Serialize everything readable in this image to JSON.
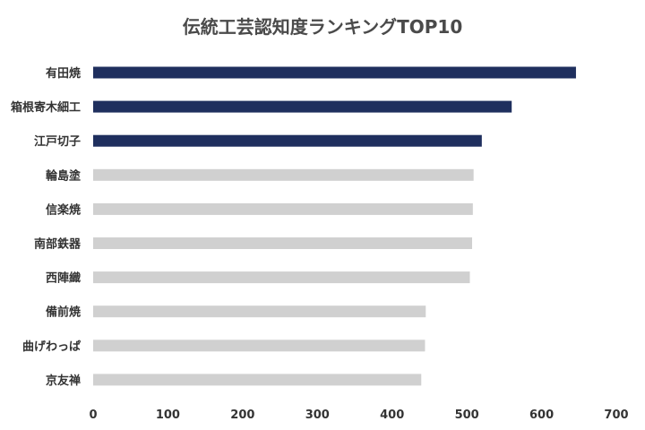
{
  "chart_data": {
    "type": "bar",
    "orientation": "horizontal",
    "title": "伝統工芸認知度ランキングTOP10",
    "xlabel": "",
    "ylabel": "",
    "categories": [
      "有田焼",
      "箱根寄木細工",
      "江戸切子",
      "輪島塗",
      "信楽焼",
      "南部鉄器",
      "西陣織",
      "備前焼",
      "曲げわっぱ",
      "京友禅"
    ],
    "values": [
      646,
      560,
      520,
      509,
      508,
      507,
      504,
      445,
      444,
      439
    ],
    "highlight_count": 3,
    "xlim": [
      0,
      700
    ],
    "xticks": [
      "0",
      "100",
      "200",
      "300",
      "400",
      "500",
      "600",
      "700"
    ],
    "grid": false,
    "legend": "none",
    "colors": {
      "highlight": "#1f2f5e",
      "other": "#d0d0d0",
      "text": "#333333",
      "title": "#4a4a4a"
    }
  }
}
